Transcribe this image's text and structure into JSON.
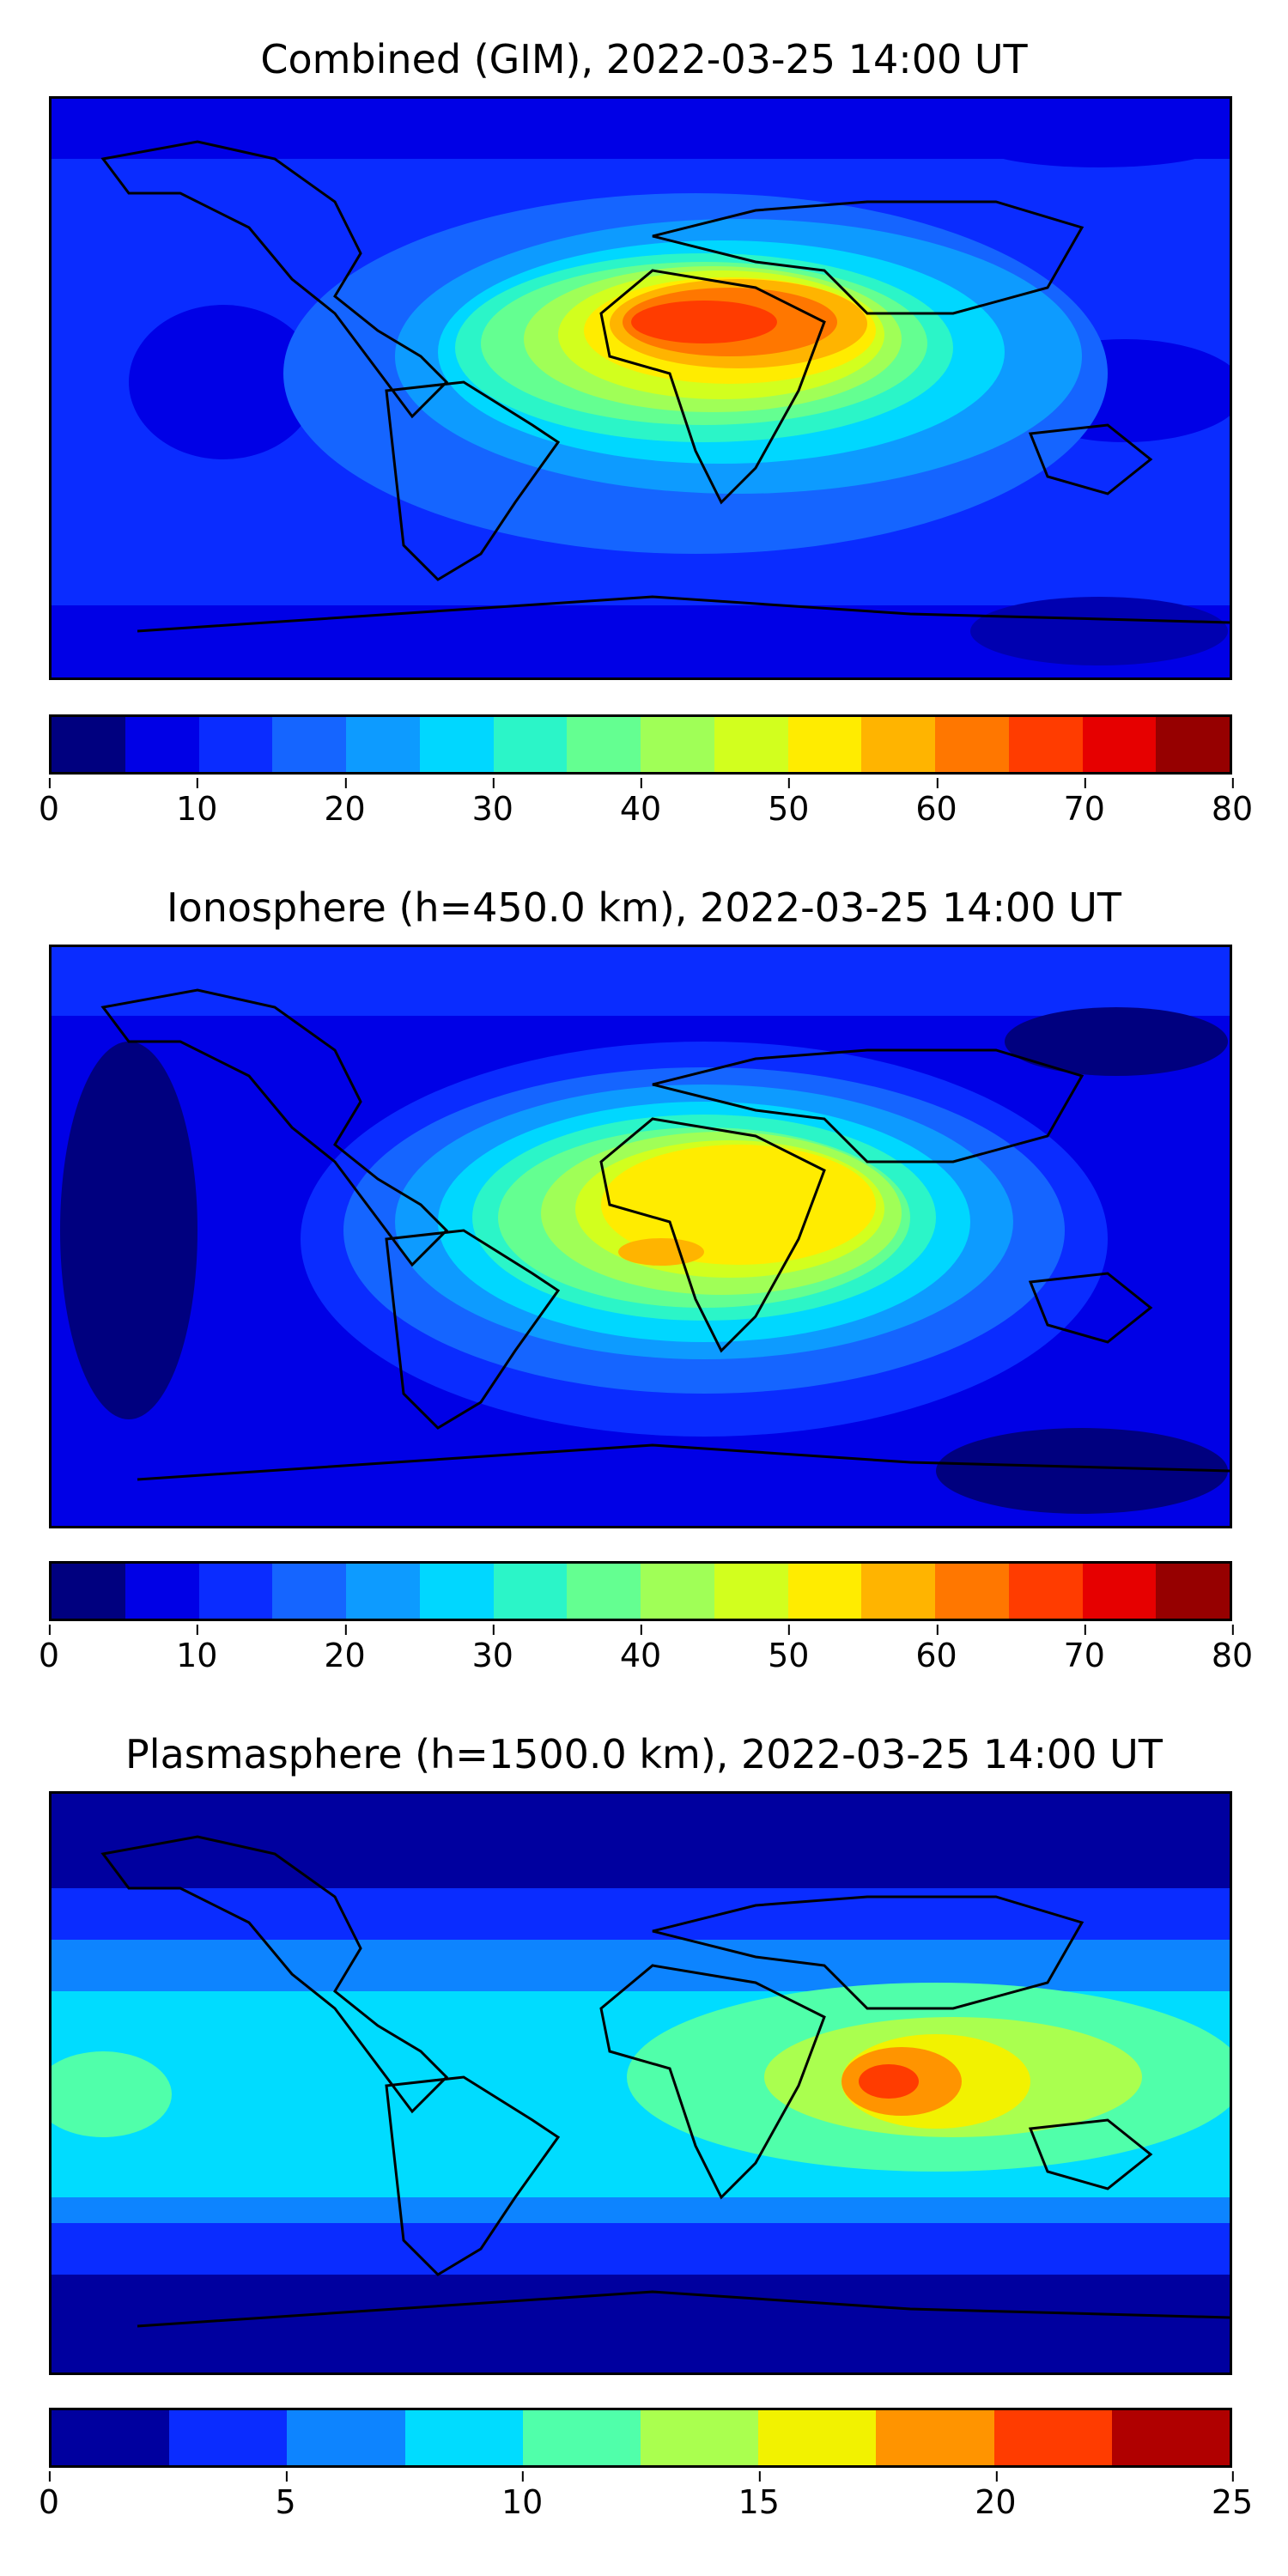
{
  "panels": [
    {
      "title": "Combined (GIM), 2022-03-25 14:00 UT",
      "colorbar": {
        "min": 0,
        "max": 80,
        "ticks": [
          "0",
          "10",
          "20",
          "30",
          "40",
          "50",
          "60",
          "70",
          "80"
        ],
        "colors": [
          "#00007f",
          "#0000e6",
          "#0a2cff",
          "#1565ff",
          "#0d9bff",
          "#00d7ff",
          "#2bf5c8",
          "#64ff91",
          "#a0ff57",
          "#d2ff1e",
          "#ffec00",
          "#ffb400",
          "#ff7700",
          "#ff3c00",
          "#e60000",
          "#960000"
        ]
      },
      "map_colors": {
        "low": "#0a2cff",
        "high": "#ff3c00"
      }
    },
    {
      "title": "Ionosphere  (h=450.0 km), 2022-03-25 14:00 UT",
      "colorbar": {
        "min": 0,
        "max": 80,
        "ticks": [
          "0",
          "10",
          "20",
          "30",
          "40",
          "50",
          "60",
          "70",
          "80"
        ],
        "colors": [
          "#00007f",
          "#0000e6",
          "#0a2cff",
          "#1565ff",
          "#0d9bff",
          "#00d7ff",
          "#2bf5c8",
          "#64ff91",
          "#a0ff57",
          "#d2ff1e",
          "#ffec00",
          "#ffb400",
          "#ff7700",
          "#ff3c00",
          "#e60000",
          "#960000"
        ]
      },
      "map_colors": {
        "low": "#0000e6",
        "high": "#ffb400"
      }
    },
    {
      "title": "Plasmasphere (h=1500.0 km), 2022-03-25 14:00 UT",
      "colorbar": {
        "min": 0,
        "max": 25,
        "ticks": [
          "0",
          "5",
          "10",
          "15",
          "20",
          "25"
        ],
        "colors": [
          "#00009f",
          "#0a2cff",
          "#0d84ff",
          "#00dcff",
          "#50ffaa",
          "#aaff4f",
          "#f2f200",
          "#ff9400",
          "#ff3c00",
          "#b00000"
        ]
      },
      "map_colors": {
        "low": "#0000b0",
        "high": "#ff3c00"
      }
    }
  ]
}
